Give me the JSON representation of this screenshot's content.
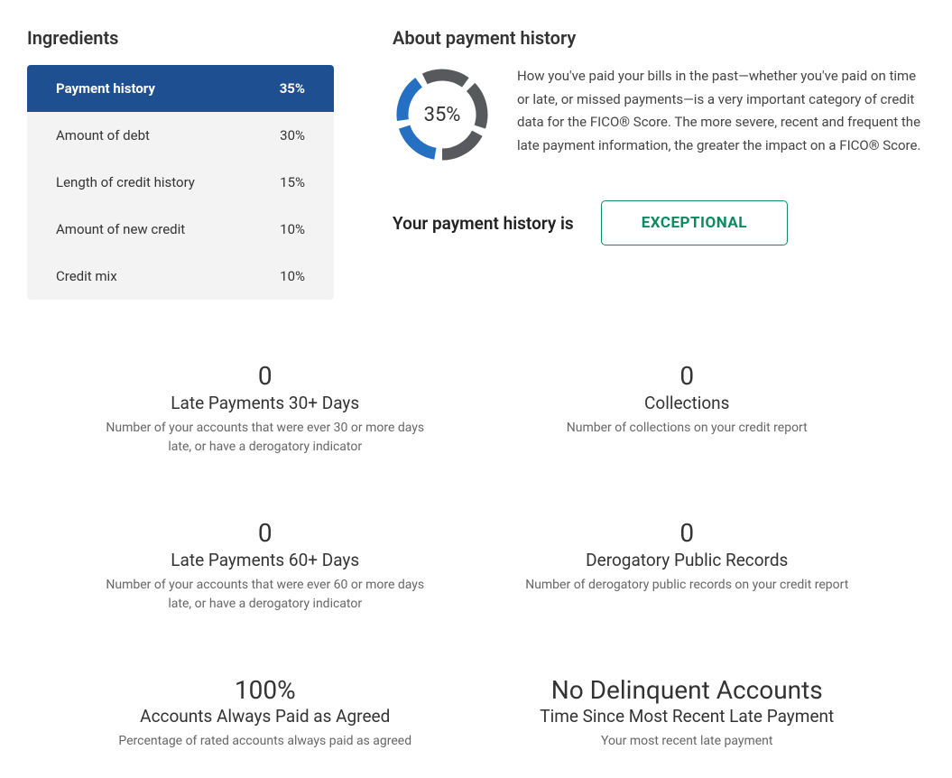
{
  "ingredients": {
    "title": "Ingredients",
    "active_index": 0,
    "items": [
      {
        "label": "Payment history",
        "pct": "35%"
      },
      {
        "label": "Amount of debt",
        "pct": "30%"
      },
      {
        "label": "Length of credit history",
        "pct": "15%"
      },
      {
        "label": "Amount of new credit",
        "pct": "10%"
      },
      {
        "label": "Credit mix",
        "pct": "10%"
      }
    ]
  },
  "about": {
    "title": "About payment history",
    "donut": {
      "percent": 35,
      "label": "35%",
      "segment_count": 5,
      "filled_segments": 2,
      "filled_color": "#2670c4",
      "empty_color": "#57595d",
      "gap_deg": 10,
      "stroke_width": 13,
      "radius": 44,
      "size": 110,
      "start_angle_deg": 185
    },
    "description": "How you've paid your bills in the past—whether you've paid on time or late, or missed payments—is a very important category of credit data for the FICO® Score. The more severe, recent and frequent the late payment information, the greater the impact on a FICO® Score.",
    "status_label": "Your payment history is",
    "status_value": "EXCEPTIONAL",
    "status_border_color": "#0f8a5f",
    "status_text_color": "#0f8a5f"
  },
  "metrics": [
    {
      "value": "0",
      "title": "Late Payments 30+ Days",
      "desc": "Number of your accounts that were ever 30 or more days late, or have a derogatory indicator"
    },
    {
      "value": "0",
      "title": "Collections",
      "desc": "Number of collections on your credit report"
    },
    {
      "value": "0",
      "title": "Late Payments 60+ Days",
      "desc": "Number of your accounts that were ever 60 or more days late, or have a derogatory indicator"
    },
    {
      "value": "0",
      "title": "Derogatory Public Records",
      "desc": "Number of derogatory public records on your credit report"
    },
    {
      "value": "100%",
      "title": "Accounts Always Paid as Agreed",
      "desc": "Percentage of rated accounts always paid as agreed"
    },
    {
      "value": "No Delinquent Accounts",
      "title": "Time Since Most Recent Late Payment",
      "desc": "Your most recent late payment"
    }
  ],
  "colors": {
    "active_row_bg": "#1d4f91",
    "list_bg": "#f3f3f3",
    "text": "#333333",
    "muted": "#666666"
  }
}
